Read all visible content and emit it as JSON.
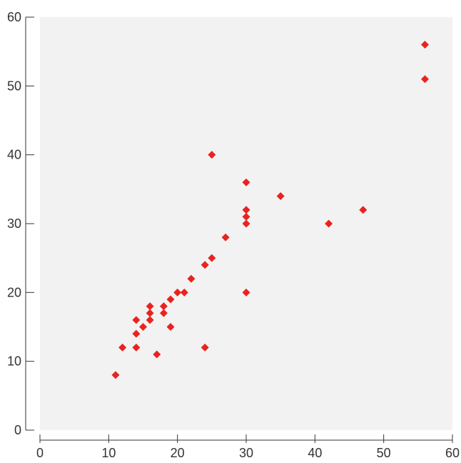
{
  "chart_data": {
    "type": "scatter",
    "title": "",
    "xlabel": "",
    "ylabel": "",
    "xlim": [
      0,
      60
    ],
    "ylim": [
      0,
      60
    ],
    "xticks": [
      0,
      10,
      20,
      30,
      40,
      50,
      60
    ],
    "yticks": [
      0,
      10,
      20,
      30,
      40,
      50,
      60
    ],
    "grid": false,
    "background_color": "#f2f2f2",
    "marker": "diamond",
    "marker_color": "#e8231f",
    "points": [
      {
        "x": 11,
        "y": 8
      },
      {
        "x": 12,
        "y": 12
      },
      {
        "x": 14,
        "y": 12
      },
      {
        "x": 14,
        "y": 14
      },
      {
        "x": 14,
        "y": 16
      },
      {
        "x": 15,
        "y": 15
      },
      {
        "x": 16,
        "y": 16
      },
      {
        "x": 16,
        "y": 17
      },
      {
        "x": 16,
        "y": 18
      },
      {
        "x": 17,
        "y": 11
      },
      {
        "x": 18,
        "y": 17
      },
      {
        "x": 18,
        "y": 18
      },
      {
        "x": 19,
        "y": 15
      },
      {
        "x": 19,
        "y": 19
      },
      {
        "x": 20,
        "y": 20
      },
      {
        "x": 21,
        "y": 20
      },
      {
        "x": 22,
        "y": 22
      },
      {
        "x": 24,
        "y": 12
      },
      {
        "x": 24,
        "y": 24
      },
      {
        "x": 25,
        "y": 25
      },
      {
        "x": 25,
        "y": 40
      },
      {
        "x": 27,
        "y": 28
      },
      {
        "x": 30,
        "y": 20
      },
      {
        "x": 30,
        "y": 30
      },
      {
        "x": 30,
        "y": 31
      },
      {
        "x": 30,
        "y": 32
      },
      {
        "x": 30,
        "y": 36
      },
      {
        "x": 35,
        "y": 34
      },
      {
        "x": 42,
        "y": 30
      },
      {
        "x": 47,
        "y": 32
      },
      {
        "x": 56,
        "y": 51
      },
      {
        "x": 56,
        "y": 56
      }
    ]
  }
}
